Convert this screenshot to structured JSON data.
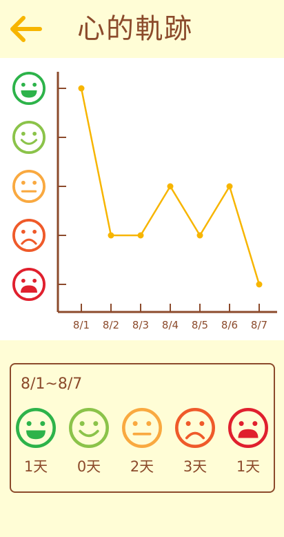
{
  "header": {
    "title": "心的軌跡",
    "back_icon": "arrow-left-icon",
    "accent": "#F7B500"
  },
  "moods": [
    {
      "key": "very-happy",
      "icon": "grin-face-icon",
      "color": "#2DB34A"
    },
    {
      "key": "happy",
      "icon": "smile-face-icon",
      "color": "#8BC34A"
    },
    {
      "key": "neutral",
      "icon": "neutral-face-icon",
      "color": "#F9A940"
    },
    {
      "key": "sad",
      "icon": "frown-face-icon",
      "color": "#EF5A2A"
    },
    {
      "key": "very-sad",
      "icon": "cry-face-icon",
      "color": "#E0202E"
    }
  ],
  "chart_data": {
    "type": "line",
    "categories": [
      "8/1",
      "8/2",
      "8/3",
      "8/4",
      "8/5",
      "8/6",
      "8/7"
    ],
    "values": [
      5,
      2,
      2,
      3,
      2,
      3,
      1
    ],
    "ylim": [
      1,
      5
    ],
    "y_tick_meaning": [
      "very-sad",
      "sad",
      "neutral",
      "happy",
      "very-happy"
    ],
    "line_color": "#F7B500",
    "axis_color": "#8B4A2B",
    "grid": false
  },
  "summary": {
    "range": "8/1~8/7",
    "counts": [
      {
        "mood": "very-happy",
        "label": "1天"
      },
      {
        "mood": "happy",
        "label": "0天"
      },
      {
        "mood": "neutral",
        "label": "2天"
      },
      {
        "mood": "sad",
        "label": "3天"
      },
      {
        "mood": "very-sad",
        "label": "1天"
      }
    ]
  }
}
